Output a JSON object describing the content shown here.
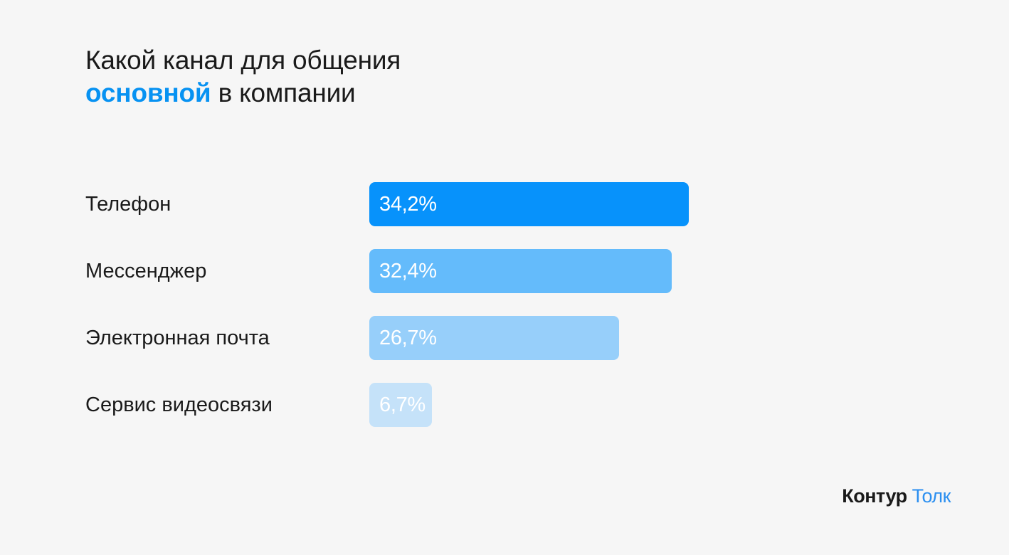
{
  "title": {
    "line1": "Какой канал для общения",
    "accent": "основной",
    "line2_rest": " в компании"
  },
  "colors": {
    "accent": "#0792f2",
    "background": "#f6f6f6",
    "text": "#1a1a1a"
  },
  "chart_data": {
    "type": "bar",
    "orientation": "horizontal",
    "unit": "%",
    "xlim": [
      0,
      100
    ],
    "grid": false,
    "legend": "none",
    "categories": [
      "Телефон",
      "Мессенджер",
      "Электронная почта",
      "Сервис видеосвязи"
    ],
    "values": [
      34.2,
      32.4,
      26.7,
      6.7
    ],
    "labels": [
      "34,2%",
      "32,4%",
      "26,7%",
      "6,7%"
    ],
    "colors": [
      "#0792fb",
      "#64bbfb",
      "#97cffa",
      "#c5e2f9"
    ]
  },
  "logo": {
    "brand": "Контур",
    "product": "Толк"
  }
}
